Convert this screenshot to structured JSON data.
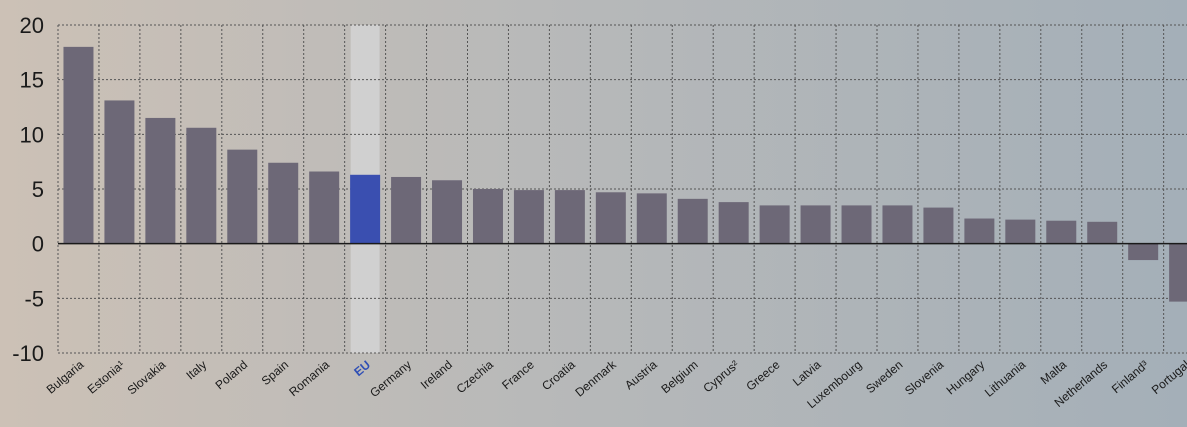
{
  "chart_data": {
    "type": "bar",
    "title": "",
    "xlabel": "",
    "ylabel": "",
    "ylim": [
      -10,
      20
    ],
    "yticks": [
      20,
      15,
      10,
      5,
      0,
      -5,
      -10
    ],
    "grid": true,
    "highlight_category": "EU",
    "categories": [
      "Bulgaria",
      "Estonia¹",
      "Slovakia",
      "Italy",
      "Poland",
      "Spain",
      "Romania",
      "EU",
      "Germany",
      "Ireland",
      "Czechia",
      "France",
      "Croatia",
      "Denmark",
      "Austria",
      "Belgium",
      "Cyprus²",
      "Greece",
      "Latvia",
      "Luxembourg",
      "Sweden",
      "Slovenia",
      "Hungary",
      "Lithuania",
      "Malta",
      "Netherlands",
      "Finland³",
      "Portugal"
    ],
    "values": [
      18.0,
      13.1,
      11.5,
      10.6,
      8.6,
      7.4,
      6.6,
      6.3,
      6.1,
      5.8,
      5.0,
      4.9,
      4.9,
      4.7,
      4.6,
      4.1,
      3.8,
      3.5,
      3.5,
      3.5,
      3.5,
      3.3,
      2.3,
      2.2,
      2.1,
      2.0,
      -1.5,
      -5.3
    ],
    "colors": {
      "bar": "#6d6877",
      "highlight_bar": "#3a4fb0",
      "highlight_band": "#d4d4d4"
    }
  }
}
